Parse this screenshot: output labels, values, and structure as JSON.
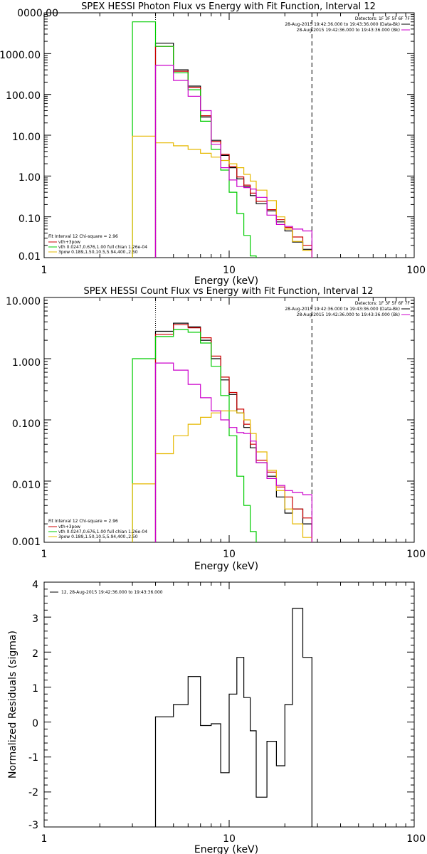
{
  "chart_data": [
    {
      "type": "line",
      "title": "SPEX HESSI Photon Flux vs Energy with Fit Function, Interval 12",
      "xlabel": "Energy (keV)",
      "ylabel": "",
      "xscale": "log",
      "yscale": "log",
      "xlim": [
        1,
        100
      ],
      "ylim": [
        0.01,
        10000
      ],
      "x_tick_labels": [
        "1",
        "10",
        "100"
      ],
      "y_tick_labels": [
        "0000.00",
        "1000.00",
        "100.00",
        "10.00",
        "1.00",
        "0.10",
        "0.01"
      ],
      "vlines": [
        {
          "x": 4.0,
          "style": "dotted"
        },
        {
          "x": 28.0,
          "style": "dashed"
        }
      ],
      "header_legend": {
        "lines": [
          {
            "text": "Detectors: 1F 3F 5F 6F 7F",
            "color": "#000000"
          },
          {
            "text": "28-Aug-2015 19:42:36.000 to 19:43:36.000 (Data-Bk)",
            "color": "#000000"
          },
          {
            "text": "28-Aug-2015 19:42:36.000 to 19:43:36.000 (Bk)",
            "color": "#cc00cc"
          }
        ]
      },
      "fit_legend": {
        "lines": [
          {
            "text": "Fit Interval 12   Chi-square = 2.96",
            "color": "#000000"
          },
          {
            "text": "vth+3pow",
            "color": "#cc0000"
          },
          {
            "text": "vth 0.0247,0.676,1.00   full chian 1.26e-04",
            "color": "#00cc00"
          },
          {
            "text": "3pow 0.189,1.50,10.5,5.94,400.,2.50",
            "color": "#e6b800"
          }
        ]
      },
      "bin_edges": [
        3.0,
        4.0,
        5.0,
        6.0,
        7.0,
        8.0,
        9.0,
        10.0,
        11.0,
        12.0,
        13.0,
        14.0,
        16.0,
        18.0,
        20.0,
        22.0,
        25.0,
        28.0
      ],
      "series": [
        {
          "name": "Data-Bk",
          "color": "#000000",
          "values": [
            null,
            1800,
            400,
            160,
            28,
            7.5,
            3.2,
            1.6,
            0.85,
            0.55,
            0.33,
            0.21,
            0.14,
            0.075,
            0.045,
            0.024,
            0.016
          ]
        },
        {
          "name": "vth+3pow",
          "color": "#cc0000",
          "values": [
            null,
            1500,
            370,
            150,
            30,
            7.0,
            3.4,
            1.7,
            0.95,
            0.6,
            0.38,
            0.24,
            0.15,
            0.085,
            0.055,
            0.032,
            0.02
          ]
        },
        {
          "name": "vth",
          "color": "#00cc00",
          "values": [
            6000,
            1500,
            340,
            130,
            22,
            4.5,
            1.4,
            0.4,
            0.12,
            0.035,
            0.011,
            null,
            null,
            null,
            null,
            null,
            null
          ]
        },
        {
          "name": "3pow",
          "color": "#e6b800",
          "values": [
            9.5,
            6.5,
            5.5,
            4.5,
            3.6,
            2.9,
            2.4,
            2.0,
            1.6,
            1.1,
            0.75,
            0.45,
            0.25,
            0.1,
            0.05,
            0.025,
            0.015
          ]
        },
        {
          "name": "Bk",
          "color": "#cc00cc",
          "values": [
            null,
            520,
            220,
            90,
            40,
            6.0,
            1.6,
            0.8,
            0.55,
            0.52,
            0.48,
            0.3,
            0.11,
            0.065,
            0.058,
            0.05,
            0.045
          ]
        }
      ]
    },
    {
      "type": "line",
      "title": "SPEX HESSI Count Flux vs Energy with Fit Function, Interval 12",
      "xlabel": "Energy (keV)",
      "ylabel": "",
      "xscale": "log",
      "yscale": "log",
      "xlim": [
        1,
        100
      ],
      "ylim": [
        0.001,
        10
      ],
      "x_tick_labels": [
        "1",
        "10",
        "100"
      ],
      "y_tick_labels": [
        "10.000",
        "1.000",
        "0.100",
        "0.010",
        "0.001"
      ],
      "vlines": [
        {
          "x": 4.0,
          "style": "dotted"
        },
        {
          "x": 28.0,
          "style": "dashed"
        }
      ],
      "header_legend": {
        "lines": [
          {
            "text": "Detectors: 1F 3F 5F 6F 7F",
            "color": "#000000"
          },
          {
            "text": "28-Aug-2015 19:42:36.000 to 19:43:36.000 (Data-Bk)",
            "color": "#000000"
          },
          {
            "text": "28-Aug-2015 19:42:36.000 to 19:43:36.000 (Bk)",
            "color": "#cc00cc"
          }
        ]
      },
      "fit_legend": {
        "lines": [
          {
            "text": "Fit Interval 12   Chi-square = 2.96",
            "color": "#000000"
          },
          {
            "text": "vth+3pow",
            "color": "#cc0000"
          },
          {
            "text": "vth 0.0247,0.676,1.00   full chian 1.26e-04",
            "color": "#00cc00"
          },
          {
            "text": "3pow 0.189,1.50,10.5,5.94,400.,2.50",
            "color": "#e6b800"
          }
        ]
      },
      "bin_edges": [
        3.0,
        4.0,
        5.0,
        6.0,
        7.0,
        8.0,
        9.0,
        10.0,
        11.0,
        12.0,
        13.0,
        14.0,
        16.0,
        18.0,
        20.0,
        22.0,
        25.0,
        28.0
      ],
      "series": [
        {
          "name": "Data-Bk",
          "color": "#000000",
          "values": [
            null,
            2.8,
            3.8,
            3.3,
            2.0,
            1.0,
            0.45,
            0.26,
            0.13,
            0.075,
            0.035,
            0.02,
            0.012,
            0.0055,
            0.003,
            0.0035,
            0.002
          ]
        },
        {
          "name": "vth+3pow",
          "color": "#cc0000",
          "values": [
            null,
            2.5,
            3.6,
            3.2,
            2.2,
            1.1,
            0.5,
            0.28,
            0.15,
            0.085,
            0.04,
            0.022,
            0.014,
            0.008,
            0.0055,
            0.0035,
            0.0025
          ]
        },
        {
          "name": "vth",
          "color": "#00cc00",
          "values": [
            1.0,
            2.3,
            3.0,
            2.7,
            1.8,
            0.75,
            0.25,
            0.055,
            0.012,
            0.004,
            0.0015,
            null,
            null,
            null,
            null,
            null,
            null
          ]
        },
        {
          "name": "3pow",
          "color": "#e6b800",
          "values": [
            0.009,
            0.028,
            0.055,
            0.085,
            0.11,
            0.13,
            0.14,
            0.14,
            0.13,
            0.1,
            0.06,
            0.03,
            0.015,
            0.007,
            0.0035,
            0.002,
            0.0012
          ]
        },
        {
          "name": "Bk",
          "color": "#cc00cc",
          "values": [
            null,
            0.85,
            0.65,
            0.38,
            0.23,
            0.14,
            0.1,
            0.075,
            0.062,
            0.06,
            0.045,
            0.02,
            0.011,
            0.0085,
            0.007,
            0.0065,
            0.006
          ]
        }
      ]
    },
    {
      "type": "line",
      "title": "",
      "xlabel": "Energy (keV)",
      "ylabel": "Normalized Residuals (sigma)",
      "xscale": "log",
      "yscale": "linear",
      "xlim": [
        1,
        100
      ],
      "ylim": [
        -3,
        4
      ],
      "x_tick_labels": [
        "1",
        "10",
        "100"
      ],
      "y_tick_labels": [
        "4",
        "3",
        "2",
        "1",
        "0",
        "-1",
        "-2",
        "-3"
      ],
      "legend": {
        "text": "12, 28-Aug-2015 19:42:36.000 to 19:43:36.000",
        "color": "#000000"
      },
      "bin_edges": [
        4.0,
        5.0,
        6.0,
        7.0,
        8.0,
        9.0,
        10.0,
        11.0,
        12.0,
        13.0,
        14.0,
        16.0,
        18.0,
        20.0,
        22.0,
        25.0,
        28.0
      ],
      "series": [
        {
          "name": "",
          "color": "#000000",
          "values": [
            0.15,
            0.5,
            1.3,
            -0.1,
            -0.05,
            -1.45,
            0.8,
            1.85,
            0.7,
            -0.25,
            -2.15,
            -0.55,
            -1.25,
            0.5,
            3.25,
            1.85
          ]
        }
      ]
    }
  ]
}
